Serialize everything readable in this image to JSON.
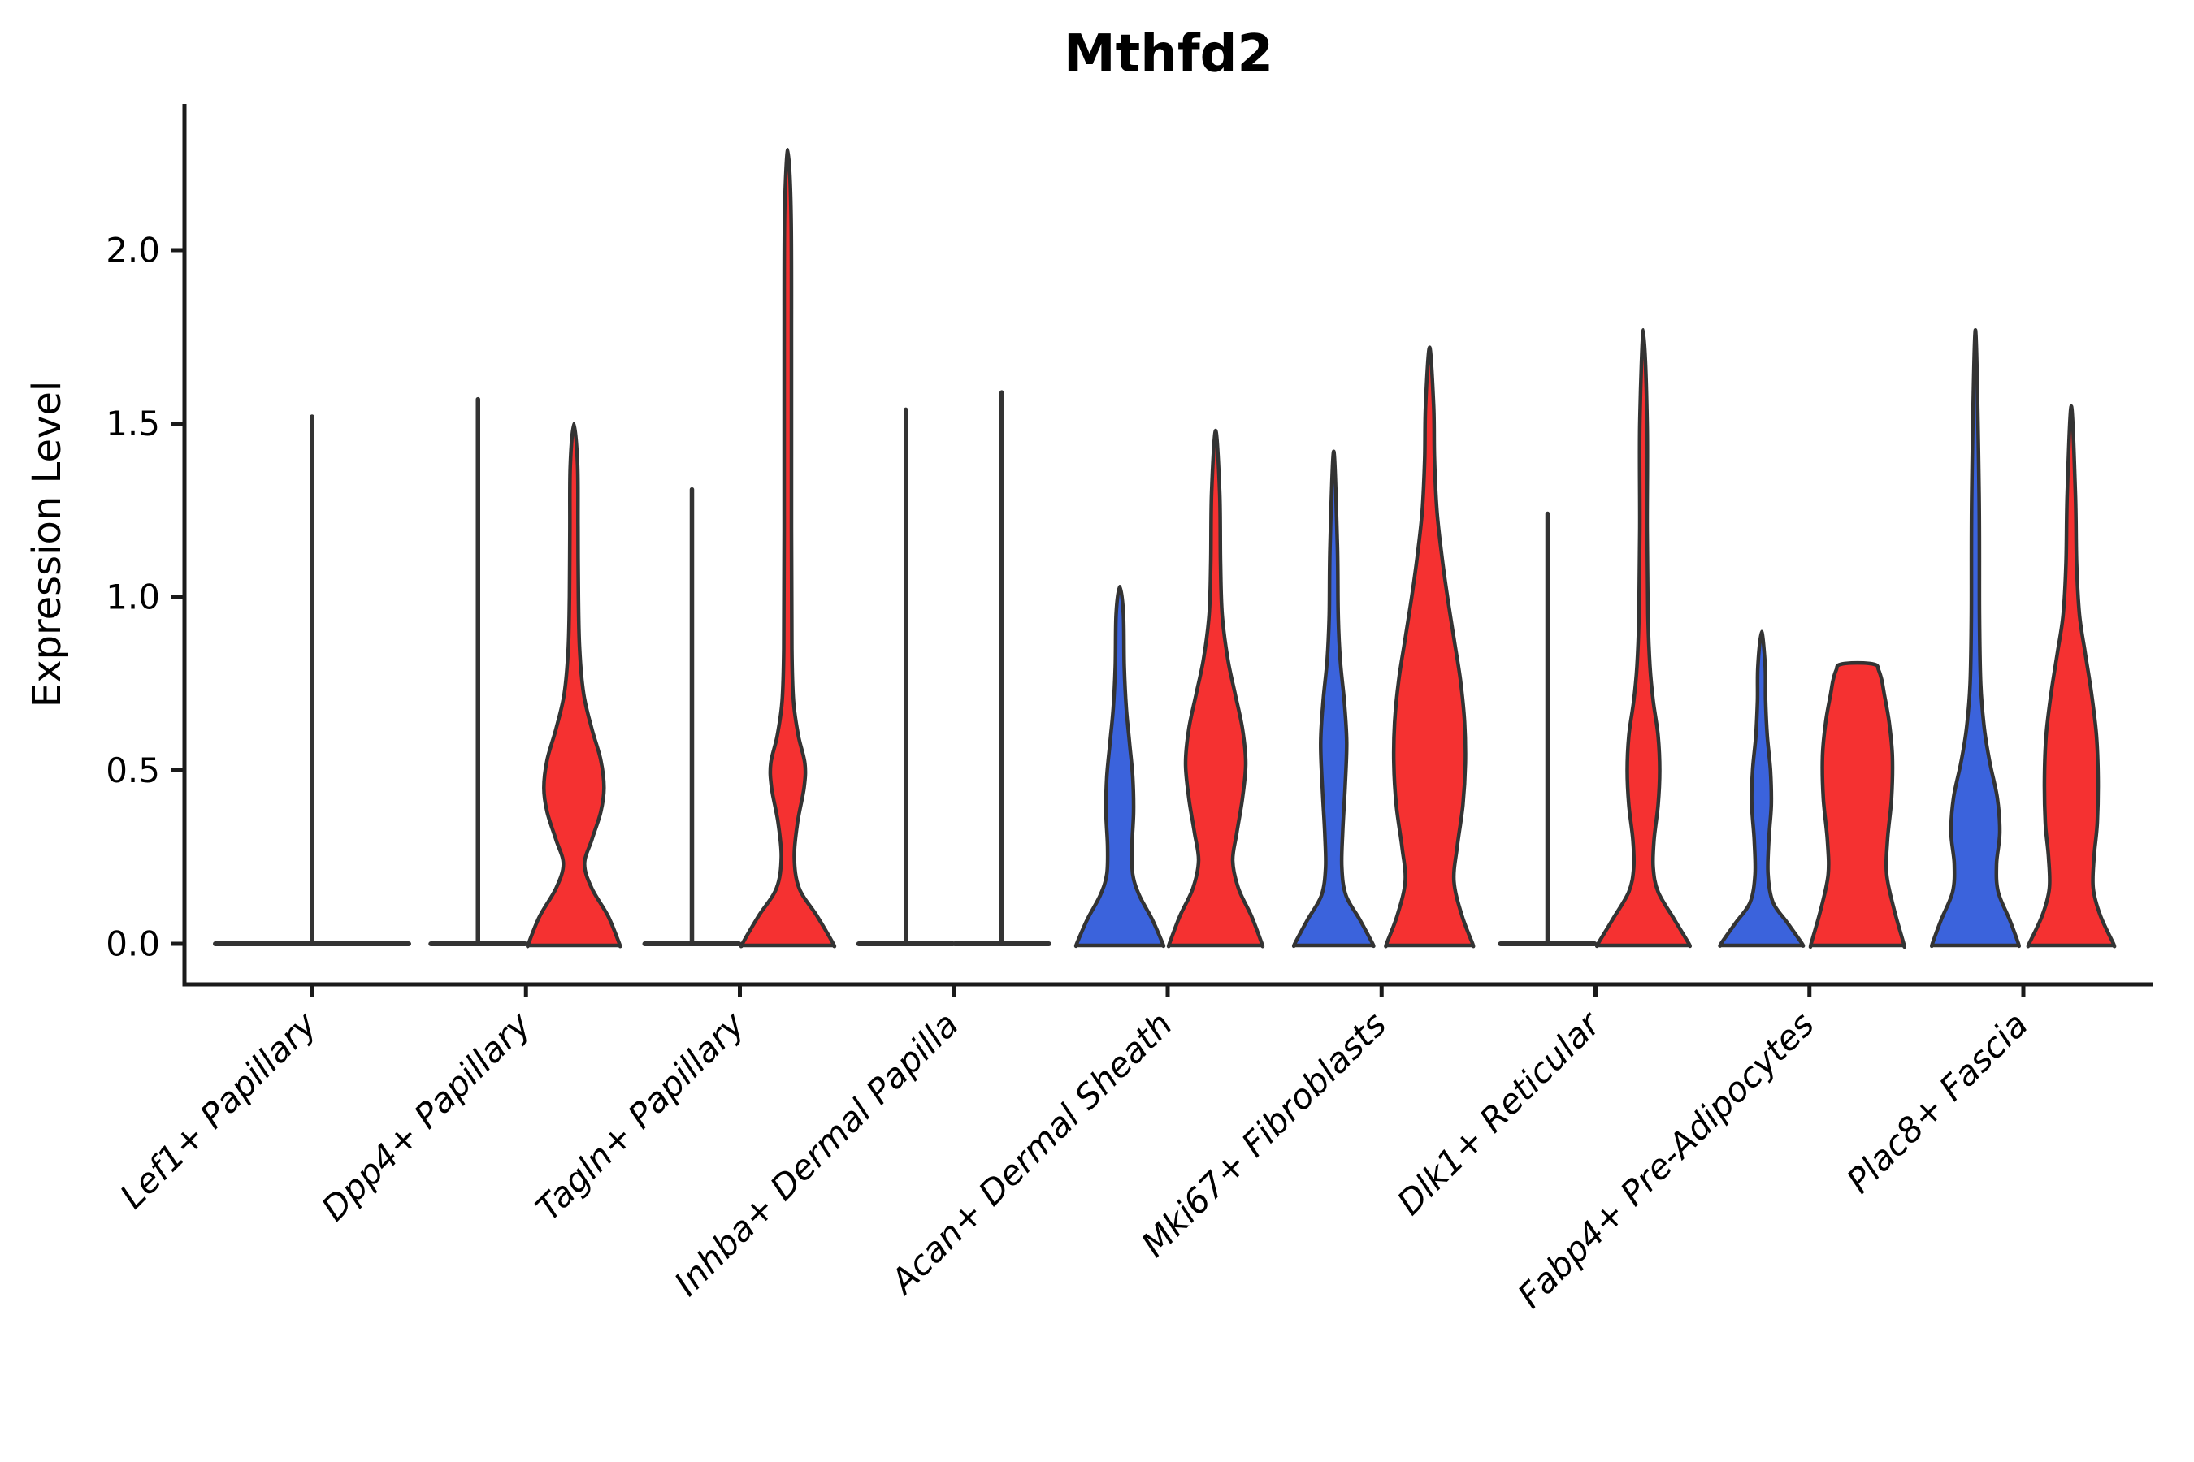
{
  "chart_data": {
    "type": "violin",
    "title": "Mthfd2",
    "ylabel": "Expression Level",
    "xlabel": "",
    "ylim": [
      -0.12,
      2.42
    ],
    "grid": false,
    "legend": "none",
    "yticks": [
      0.0,
      0.5,
      1.0,
      1.5,
      2.0
    ],
    "ytick_labels": [
      "0.0",
      "0.5",
      "1.0",
      "1.5",
      "2.0"
    ],
    "categories": [
      "Lef1+ Papillary",
      "Dpp4+ Papillary",
      "Tagln+ Papillary",
      "Inhba+ Dermal Papilla",
      "Acan+ Dermal Sheath",
      "Mki67+ Fibroblasts",
      "Dlk1+ Reticular",
      "Fabp4+ Pre-Adipocytes",
      "Plac8+ Fascia"
    ],
    "series_colors": {
      "blue": "#3B63DC",
      "red": "#F53131",
      "neutral": "#333333"
    },
    "outline_color": "#333333",
    "axis_color": "#1a1a1a",
    "violins": [
      {
        "category": 0,
        "side": "center",
        "color": "neutral",
        "shape": "flat",
        "flat_halfwidth": 119,
        "spike_max": 1.52
      },
      {
        "category": 1,
        "side": "left",
        "color": "blue",
        "shape": "flat",
        "flat_halfwidth": 58,
        "spike_max": 1.57
      },
      {
        "category": 1,
        "side": "right",
        "color": "red",
        "shape": "density",
        "max": 1.5,
        "profile": [
          [
            0,
            56
          ],
          [
            0.08,
            42
          ],
          [
            0.16,
            22
          ],
          [
            0.23,
            13
          ],
          [
            0.3,
            22
          ],
          [
            0.38,
            33
          ],
          [
            0.45,
            37
          ],
          [
            0.53,
            33
          ],
          [
            0.62,
            22
          ],
          [
            0.72,
            12
          ],
          [
            0.85,
            7
          ],
          [
            1.0,
            5.5
          ],
          [
            1.2,
            5
          ],
          [
            1.38,
            4.5
          ],
          [
            1.5,
            0
          ]
        ]
      },
      {
        "category": 2,
        "side": "left",
        "color": "blue",
        "shape": "flat",
        "flat_halfwidth": 58,
        "spike_max": 1.31
      },
      {
        "category": 2,
        "side": "right",
        "color": "red",
        "shape": "density",
        "max": 2.29,
        "profile": [
          [
            0,
            56
          ],
          [
            0.08,
            36
          ],
          [
            0.16,
            14
          ],
          [
            0.25,
            8
          ],
          [
            0.35,
            12
          ],
          [
            0.45,
            20
          ],
          [
            0.52,
            21
          ],
          [
            0.6,
            13
          ],
          [
            0.7,
            7
          ],
          [
            0.85,
            5
          ],
          [
            1.2,
            4.5
          ],
          [
            1.7,
            4.5
          ],
          [
            2.1,
            4
          ],
          [
            2.29,
            0
          ]
        ]
      },
      {
        "category": 3,
        "side": "left",
        "color": "blue",
        "shape": "flat",
        "flat_halfwidth": 58,
        "spike_max": 1.54
      },
      {
        "category": 3,
        "side": "right",
        "color": "red",
        "shape": "flat",
        "flat_halfwidth": 58,
        "spike_max": 1.59
      },
      {
        "category": 4,
        "side": "left",
        "color": "blue",
        "shape": "density",
        "max": 1.03,
        "profile": [
          [
            0,
            53
          ],
          [
            0.07,
            40
          ],
          [
            0.14,
            24
          ],
          [
            0.2,
            16
          ],
          [
            0.28,
            15
          ],
          [
            0.38,
            17
          ],
          [
            0.48,
            16
          ],
          [
            0.58,
            12
          ],
          [
            0.68,
            8
          ],
          [
            0.8,
            5.5
          ],
          [
            0.95,
            4.5
          ],
          [
            1.03,
            0
          ]
        ]
      },
      {
        "category": 4,
        "side": "right",
        "color": "red",
        "shape": "density",
        "max": 1.48,
        "profile": [
          [
            0,
            57
          ],
          [
            0.08,
            44
          ],
          [
            0.16,
            28
          ],
          [
            0.24,
            21
          ],
          [
            0.32,
            26
          ],
          [
            0.42,
            33
          ],
          [
            0.52,
            37
          ],
          [
            0.62,
            33
          ],
          [
            0.72,
            24
          ],
          [
            0.82,
            15
          ],
          [
            0.95,
            8
          ],
          [
            1.1,
            6
          ],
          [
            1.3,
            5
          ],
          [
            1.48,
            0
          ]
        ]
      },
      {
        "category": 5,
        "side": "left",
        "color": "blue",
        "shape": "density",
        "max": 1.42,
        "profile": [
          [
            0,
            48
          ],
          [
            0.07,
            32
          ],
          [
            0.14,
            15
          ],
          [
            0.22,
            10
          ],
          [
            0.32,
            11
          ],
          [
            0.45,
            14
          ],
          [
            0.58,
            16
          ],
          [
            0.7,
            13
          ],
          [
            0.82,
            8
          ],
          [
            0.95,
            5.5
          ],
          [
            1.15,
            4.5
          ],
          [
            1.42,
            0
          ]
        ]
      },
      {
        "category": 5,
        "side": "right",
        "color": "red",
        "shape": "density",
        "max": 1.72,
        "profile": [
          [
            0,
            53
          ],
          [
            0.08,
            40
          ],
          [
            0.18,
            30
          ],
          [
            0.28,
            34
          ],
          [
            0.4,
            41
          ],
          [
            0.52,
            44
          ],
          [
            0.64,
            43
          ],
          [
            0.76,
            38
          ],
          [
            0.88,
            30
          ],
          [
            1.0,
            22
          ],
          [
            1.12,
            15
          ],
          [
            1.25,
            9
          ],
          [
            1.4,
            6
          ],
          [
            1.55,
            5
          ],
          [
            1.72,
            0
          ]
        ]
      },
      {
        "category": 6,
        "side": "left",
        "color": "blue",
        "shape": "flat",
        "flat_halfwidth": 58,
        "spike_max": 1.24
      },
      {
        "category": 6,
        "side": "right",
        "color": "red",
        "shape": "density",
        "max": 1.77,
        "profile": [
          [
            0,
            56
          ],
          [
            0.07,
            38
          ],
          [
            0.15,
            18
          ],
          [
            0.22,
            12
          ],
          [
            0.3,
            13
          ],
          [
            0.4,
            18
          ],
          [
            0.5,
            20
          ],
          [
            0.6,
            18
          ],
          [
            0.7,
            12
          ],
          [
            0.8,
            8
          ],
          [
            0.95,
            5.5
          ],
          [
            1.2,
            4.5
          ],
          [
            1.5,
            4.5
          ],
          [
            1.77,
            0
          ]
        ]
      },
      {
        "category": 7,
        "side": "left",
        "color": "blue",
        "shape": "density",
        "max": 0.9,
        "profile": [
          [
            0,
            50
          ],
          [
            0.06,
            32
          ],
          [
            0.12,
            14
          ],
          [
            0.2,
            8
          ],
          [
            0.3,
            9
          ],
          [
            0.4,
            12
          ],
          [
            0.5,
            11
          ],
          [
            0.6,
            7
          ],
          [
            0.7,
            5
          ],
          [
            0.8,
            4.5
          ],
          [
            0.9,
            0
          ]
        ]
      },
      {
        "category": 7,
        "side": "right",
        "color": "red",
        "shape": "density",
        "max": 0.81,
        "profile": [
          [
            0,
            57
          ],
          [
            0.1,
            45
          ],
          [
            0.2,
            36
          ],
          [
            0.3,
            37
          ],
          [
            0.42,
            42
          ],
          [
            0.54,
            43
          ],
          [
            0.64,
            39
          ],
          [
            0.72,
            33
          ],
          [
            0.76,
            30
          ],
          [
            0.79,
            26
          ],
          [
            0.805,
            22
          ],
          [
            0.81,
            0
          ]
        ]
      },
      {
        "category": 8,
        "side": "left",
        "color": "blue",
        "shape": "density",
        "max": 1.77,
        "profile": [
          [
            0,
            53
          ],
          [
            0.07,
            42
          ],
          [
            0.15,
            28
          ],
          [
            0.23,
            26
          ],
          [
            0.32,
            30
          ],
          [
            0.42,
            27
          ],
          [
            0.52,
            18
          ],
          [
            0.62,
            11
          ],
          [
            0.75,
            6.5
          ],
          [
            0.95,
            5
          ],
          [
            1.3,
            4.5
          ],
          [
            1.77,
            0
          ]
        ]
      },
      {
        "category": 8,
        "side": "right",
        "color": "red",
        "shape": "density",
        "max": 1.55,
        "profile": [
          [
            0,
            52
          ],
          [
            0.08,
            36
          ],
          [
            0.16,
            27
          ],
          [
            0.25,
            28
          ],
          [
            0.35,
            32
          ],
          [
            0.48,
            33
          ],
          [
            0.6,
            31
          ],
          [
            0.72,
            25
          ],
          [
            0.84,
            17
          ],
          [
            0.95,
            10
          ],
          [
            1.1,
            6.5
          ],
          [
            1.3,
            5
          ],
          [
            1.55,
            0
          ]
        ]
      }
    ]
  }
}
